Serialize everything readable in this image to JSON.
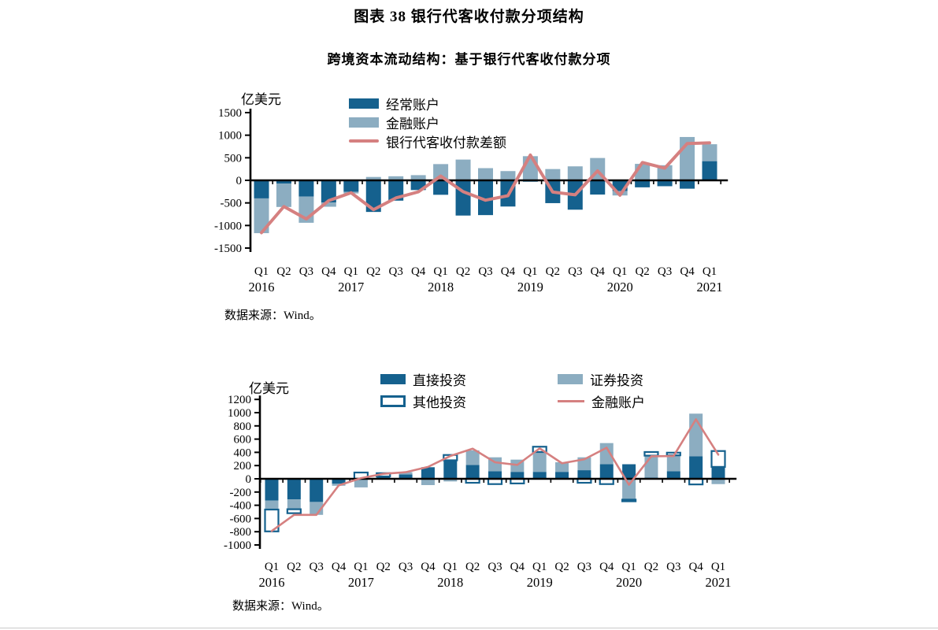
{
  "header": {
    "title": "图表 38  银行代客收付款分项结构",
    "subtitle": "跨境资本流动结构：基于银行代客收付款分项"
  },
  "colors": {
    "dark_blue": "#15618E",
    "light_blue": "#8CADC1",
    "pink_line": "#D58080",
    "axis": "#000000"
  },
  "chart_data": [
    {
      "type": "bar",
      "title": "跨境资本流动结构：基于银行代客收付款分项",
      "unit": "亿美元",
      "source": "数据来源：Wind。",
      "legend_position": "top-center",
      "ylim": [
        -1500,
        1500
      ],
      "ytick_step": 500,
      "categories": [
        "2016Q1",
        "2016Q2",
        "2016Q3",
        "2016Q4",
        "2017Q1",
        "2017Q2",
        "2017Q3",
        "2017Q4",
        "2018Q1",
        "2018Q2",
        "2018Q3",
        "2018Q4",
        "2019Q1",
        "2019Q2",
        "2019Q3",
        "2019Q4",
        "2020Q1",
        "2020Q2",
        "2020Q3",
        "2020Q4",
        "2021Q1"
      ],
      "series": [
        {
          "name": "经常账户",
          "type": "bar",
          "style": "dark",
          "values": [
            -400,
            -70,
            -360,
            -490,
            -255,
            -700,
            -450,
            -215,
            -320,
            -780,
            -770,
            -580,
            -30,
            -505,
            -650,
            -315,
            -235,
            -155,
            -130,
            -185,
            425
          ]
        },
        {
          "name": "金融账户",
          "type": "bar",
          "style": "light",
          "values": [
            -770,
            -520,
            -580,
            -95,
            -35,
            75,
            90,
            115,
            360,
            460,
            270,
            205,
            535,
            250,
            310,
            495,
            -100,
            365,
            335,
            960,
            375
          ]
        },
        {
          "name": "银行代客收付款差额",
          "type": "line",
          "style": "pink",
          "values": [
            -1160,
            -580,
            -855,
            -450,
            -275,
            -650,
            -390,
            -255,
            95,
            -250,
            -440,
            -340,
            560,
            -260,
            -320,
            210,
            -330,
            395,
            270,
            815,
            830
          ]
        }
      ]
    },
    {
      "type": "bar",
      "title": "",
      "unit": "亿美元",
      "source": "数据来源：Wind。",
      "legend_position": "top-two-column",
      "ylim": [
        -1000,
        1200
      ],
      "ytick_step": 200,
      "categories": [
        "2016Q1",
        "2016Q2",
        "2016Q3",
        "2016Q4",
        "2017Q1",
        "2017Q2",
        "2017Q3",
        "2017Q4",
        "2018Q1",
        "2018Q2",
        "2018Q3",
        "2018Q4",
        "2019Q1",
        "2019Q2",
        "2019Q3",
        "2019Q4",
        "2020Q1",
        "2020Q2",
        "2020Q3",
        "2020Q4",
        "2021Q1"
      ],
      "series": [
        {
          "name": "直接投资",
          "type": "bar",
          "style": "dark",
          "values": [
            -330,
            -310,
            -350,
            -75,
            0,
            35,
            65,
            175,
            280,
            210,
            115,
            105,
            105,
            105,
            130,
            220,
            220,
            20,
            115,
            340,
            180
          ]
        },
        {
          "name": "证券投资",
          "type": "bar",
          "style": "light",
          "values": [
            -135,
            -150,
            -195,
            -30,
            -130,
            0,
            35,
            -95,
            -40,
            220,
            210,
            185,
            300,
            145,
            195,
            320,
            -315,
            330,
            240,
            645,
            -80
          ]
        },
        {
          "name": "其他投资",
          "type": "bar",
          "style": "hollow",
          "values": [
            -330,
            -60,
            0,
            0,
            95,
            50,
            0,
            0,
            80,
            -60,
            -80,
            -70,
            80,
            0,
            -60,
            -80,
            -25,
            55,
            40,
            -85,
            240
          ]
        },
        {
          "name": "金融账户",
          "type": "line",
          "style": "pink",
          "values": [
            -790,
            -545,
            -545,
            -100,
            10,
            75,
            100,
            180,
            345,
            455,
            250,
            210,
            460,
            235,
            295,
            470,
            -90,
            340,
            345,
            900,
            365
          ]
        }
      ]
    }
  ]
}
